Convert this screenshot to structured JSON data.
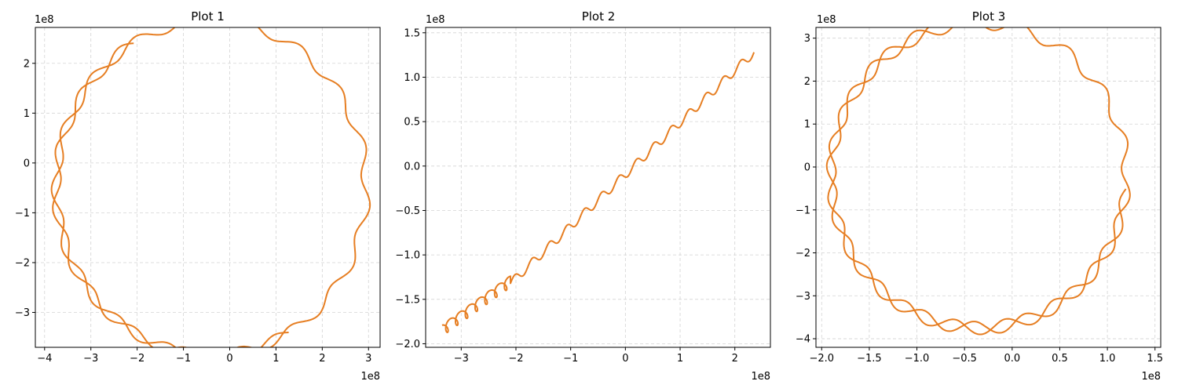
{
  "style": {
    "line_color": "#e67e22",
    "grid_color": "#d3d3d3",
    "axis_color": "#000000"
  },
  "chart_data": [
    {
      "type": "line",
      "title": "Plot 1",
      "xlabel": "",
      "ylabel": "",
      "x_offset_label": "1e8",
      "y_offset_label": "1e8",
      "xlim": [
        -4.2,
        3.25
      ],
      "ylim": [
        -3.7,
        2.72
      ],
      "xticks": [
        -4,
        -3,
        -2,
        -1,
        0,
        1,
        2,
        3
      ],
      "xtick_labels": [
        "−4",
        "−3",
        "−2",
        "−1",
        "0",
        "1",
        "2",
        "3"
      ],
      "yticks": [
        -3,
        -2,
        -1,
        0,
        1,
        2
      ],
      "ytick_labels": [
        "−3",
        "−2",
        "−1",
        "0",
        "1",
        "2"
      ],
      "grid": true,
      "series": [
        {
          "trajectory": {
            "center": [
              -0.4,
              -0.5
            ],
            "radius": 3.35,
            "start_angle_deg": 120,
            "end_angle_deg": 300,
            "direction": "ccw",
            "mid_angle_deg": 270,
            "wiggle_amp": 0.1,
            "wiggles": 26
          },
          "x": [
            -2.72,
            -3.0,
            -3.45,
            -3.7,
            -3.82,
            -3.84,
            -3.75,
            -3.5,
            -3.1,
            -2.6,
            -2.0,
            -1.0,
            0.0,
            1.0,
            2.0,
            2.5,
            2.9
          ],
          "y": [
            2.42,
            2.15,
            1.2,
            0.5,
            0.0,
            -0.8,
            -1.4,
            -1.9,
            -2.3,
            -2.6,
            -2.9,
            -3.25,
            -3.35,
            -3.25,
            -2.8,
            -2.5,
            -2.15
          ]
        }
      ]
    },
    {
      "type": "line",
      "title": "Plot 2",
      "xlabel": "",
      "ylabel": "",
      "x_offset_label": "1e8",
      "y_offset_label": "1e8",
      "xlim": [
        -3.65,
        2.65
      ],
      "ylim": [
        -2.04,
        1.56
      ],
      "xticks": [
        -3,
        -2,
        -1,
        0,
        1,
        2
      ],
      "xtick_labels": [
        "−3",
        "−2",
        "−1",
        "0",
        "1",
        "2"
      ],
      "yticks": [
        -2.0,
        -1.5,
        -1.0,
        -0.5,
        0.0,
        0.5,
        1.0,
        1.5
      ],
      "ytick_labels": [
        "−2.0",
        "−1.5",
        "−1.0",
        "−0.5",
        "0.0",
        "0.5",
        "1.0",
        "1.5"
      ],
      "grid": true,
      "series": [
        {
          "x": [
            -3.35,
            -3.0,
            -2.5,
            -2.0,
            -1.5,
            -1.0,
            -0.5,
            0.0,
            0.5,
            1.0,
            1.5,
            2.0,
            2.4
          ],
          "y": [
            -1.85,
            -1.65,
            -1.35,
            -1.1,
            -0.75,
            -0.4,
            -0.2,
            0.0,
            0.35,
            0.6,
            0.85,
            1.1,
            1.38
          ]
        }
      ]
    },
    {
      "type": "line",
      "title": "Plot 3",
      "xlabel": "",
      "ylabel": "",
      "x_offset_label": "1e8",
      "y_offset_label": "1e8",
      "xlim": [
        -2.06,
        1.56
      ],
      "ylim": [
        -4.2,
        3.25
      ],
      "xticks": [
        -2.0,
        -1.5,
        -1.0,
        -0.5,
        0.0,
        0.5,
        1.0,
        1.5
      ],
      "xtick_labels": [
        "−2.0",
        "−1.5",
        "−1.0",
        "−0.5",
        "0.0",
        "0.5",
        "1.0",
        "1.5"
      ],
      "yticks": [
        -4,
        -3,
        -2,
        -1,
        0,
        1,
        2,
        3
      ],
      "ytick_labels": [
        "−4",
        "−3",
        "−2",
        "−1",
        "0",
        "1",
        "2",
        "3"
      ],
      "grid": true,
      "series": [
        {
          "x": [
            -1.32,
            -1.5,
            -1.65,
            -1.8,
            -1.9,
            -1.92,
            -1.88,
            -1.78,
            -1.6,
            -1.35,
            -1.0,
            -0.5,
            0.0,
            0.5,
            1.0,
            1.4
          ],
          "y": [
            2.88,
            2.5,
            1.8,
            1.0,
            0.3,
            -0.3,
            -1.0,
            -1.6,
            -2.2,
            -2.7,
            -3.1,
            -3.6,
            -3.85,
            -3.7,
            -3.3,
            -2.65
          ]
        }
      ]
    }
  ]
}
